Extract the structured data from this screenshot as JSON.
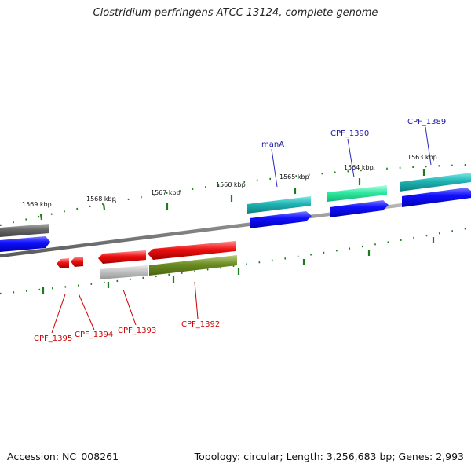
{
  "title": "Clostridium perfringens ATCC 13124, complete genome",
  "footer": {
    "accession": "Accession: NC_008261",
    "stats": "Topology: circular; Length: 3,256,683 bp; Genes: 2,993"
  },
  "scale_labels": [
    "1569 kbp",
    "1568 kbp",
    "1567 kbp",
    "1566 kbp",
    "1565 kbp",
    "1564 kbp",
    "1563 kbp"
  ],
  "gene_labels": {
    "forward": [
      "manA",
      "CPF_1390",
      "CPF_1389"
    ],
    "reverse": [
      "CPF_1395",
      "CPF_1394",
      "CPF_1393",
      "CPF_1392"
    ]
  },
  "colors": {
    "forward_label": "#1a1aa8",
    "reverse_label": "#cc0000",
    "ticks": "#1e7a1e",
    "backbone": "#888888"
  }
}
